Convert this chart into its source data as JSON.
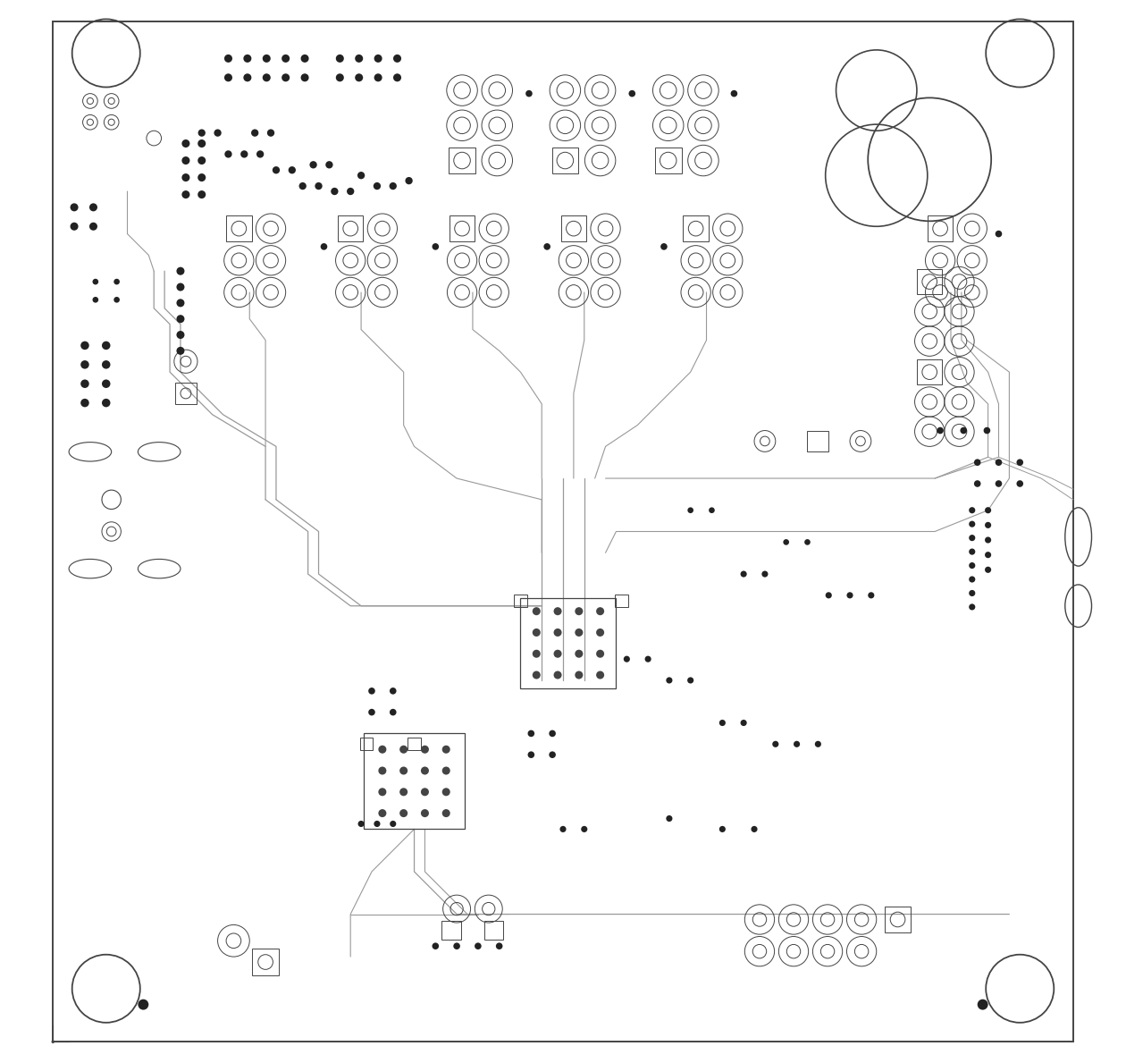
{
  "bg_color": "#ffffff",
  "line_color": "#444444",
  "trace_color": "#999999",
  "pad_fill": "#222222",
  "figsize": [
    12.6,
    11.89
  ],
  "dpi": 100
}
